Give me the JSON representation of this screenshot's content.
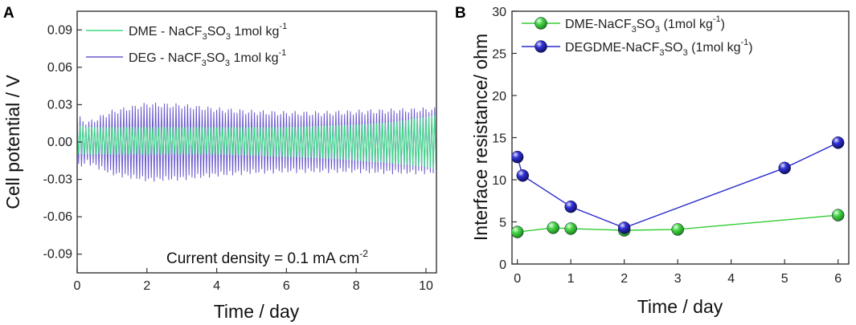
{
  "chart_data": [
    {
      "panel_label": "A",
      "type": "line",
      "title": "",
      "xlabel": "Time / day",
      "ylabel": "Cell potential / V",
      "xlim": [
        0,
        10.3
      ],
      "ylim": [
        -0.105,
        0.105
      ],
      "xticks": [
        0,
        2,
        4,
        6,
        8,
        10
      ],
      "xtick_labels": [
        "0",
        "2",
        "4",
        "6",
        "8",
        "10"
      ],
      "yticks": [
        -0.09,
        -0.06,
        -0.03,
        0.0,
        0.03,
        0.06,
        0.09
      ],
      "ytick_labels": [
        "-0.09",
        "-0.06",
        "-0.03",
        "0.00",
        "0.03",
        "0.06",
        "0.09"
      ],
      "annotation": "Current density = 0.1 mA cm",
      "annotation_sup": "-2",
      "legend_position": "top-left",
      "cycles_per_day": 12,
      "series": [
        {
          "name": "DME - NaCF3SO3 1mol kg-1",
          "legend_parts": [
            "DME - NaCF",
            "3",
            "SO",
            "3",
            " 1mol kg",
            "-1"
          ],
          "color": "#3ddc84",
          "envelope_t": [
            0,
            0.3,
            1,
            2,
            3,
            4,
            5,
            6,
            7,
            8,
            9,
            10,
            10.3
          ],
          "envelope_upper": [
            0.014,
            0.012,
            0.012,
            0.012,
            0.012,
            0.012,
            0.012,
            0.012,
            0.013,
            0.014,
            0.016,
            0.02,
            0.022
          ],
          "envelope_lower": [
            -0.01,
            -0.01,
            -0.01,
            -0.01,
            -0.01,
            -0.01,
            -0.011,
            -0.012,
            -0.013,
            -0.015,
            -0.017,
            -0.02,
            -0.022
          ]
        },
        {
          "name": "DEG - NaCF3SO3 1mol kg-1",
          "legend_parts": [
            "DEG - NaCF",
            "3",
            "SO",
            "3",
            " 1mol kg",
            "-1"
          ],
          "color": "#6a5acd",
          "envelope_t": [
            0,
            0.3,
            1,
            2,
            3,
            4,
            5,
            6,
            7,
            8,
            9,
            10,
            10.3
          ],
          "envelope_upper": [
            0.02,
            0.015,
            0.024,
            0.03,
            0.029,
            0.026,
            0.024,
            0.023,
            0.023,
            0.024,
            0.025,
            0.026,
            0.026
          ],
          "envelope_lower": [
            -0.02,
            -0.016,
            -0.025,
            -0.03,
            -0.029,
            -0.026,
            -0.024,
            -0.023,
            -0.023,
            -0.023,
            -0.024,
            -0.024,
            -0.024
          ]
        }
      ]
    },
    {
      "panel_label": "B",
      "type": "line",
      "title": "",
      "xlabel": "Time / day",
      "ylabel": "Interface resistance/ ohm",
      "xlim": [
        -0.1,
        6.2
      ],
      "ylim": [
        0,
        30
      ],
      "xticks": [
        0,
        1,
        2,
        3,
        4,
        5,
        6
      ],
      "xtick_labels": [
        "0",
        "1",
        "2",
        "3",
        "4",
        "5",
        "6"
      ],
      "yticks": [
        0,
        5,
        10,
        15,
        20,
        25,
        30
      ],
      "ytick_labels": [
        "0",
        "5",
        "10",
        "15",
        "20",
        "25",
        "30"
      ],
      "legend_position": "top-left",
      "series": [
        {
          "name": "DME-NaCF3SO3 (1mol kg-1)",
          "legend_parts": [
            "DME-NaCF",
            "3",
            "SO",
            "3",
            " (1mol kg",
            "-1",
            ")"
          ],
          "color": "#33cc33",
          "x": [
            0,
            0.67,
            1,
            2,
            3,
            6
          ],
          "y": [
            3.8,
            4.3,
            4.2,
            4.0,
            4.1,
            5.8
          ]
        },
        {
          "name": "DEGDME-NaCF3SO3 (1mol kg-1)",
          "legend_parts": [
            "DEGDME-NaCF",
            "3",
            "SO",
            "3",
            " (1mol kg",
            "-1",
            ")"
          ],
          "color": "#2a2acf",
          "x": [
            0,
            0.1,
            1,
            2,
            5,
            6
          ],
          "y": [
            12.7,
            10.5,
            6.8,
            4.3,
            11.4,
            14.4
          ]
        }
      ]
    }
  ]
}
